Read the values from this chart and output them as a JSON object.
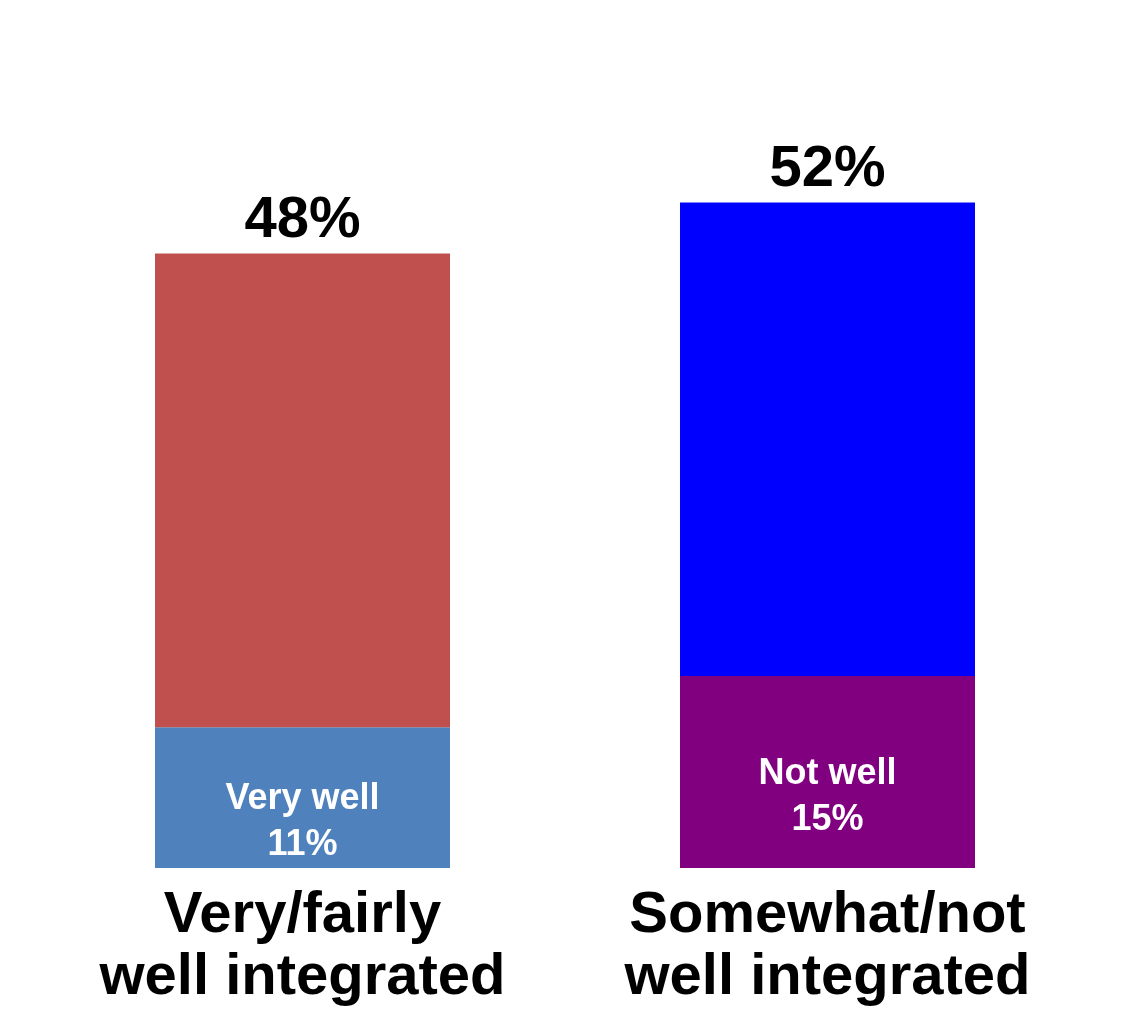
{
  "chart_data": {
    "type": "bar",
    "stacked": true,
    "tick_labels": "x",
    "categories": [
      "Very/fairly\nwell integrated",
      "Somewhat/not\nwell integrated"
    ],
    "series": [
      {
        "colors": [
          "#4f81bd",
          "#800080"
        ],
        "values": [
          11,
          15
        ],
        "value_labels": [
          "Very well\n11%",
          "Not well\n15%"
        ]
      },
      {
        "colors": [
          "#c0504d",
          "#0000ff"
        ],
        "values": [
          37,
          37
        ]
      }
    ],
    "totals": [
      "48%",
      "52%"
    ]
  }
}
